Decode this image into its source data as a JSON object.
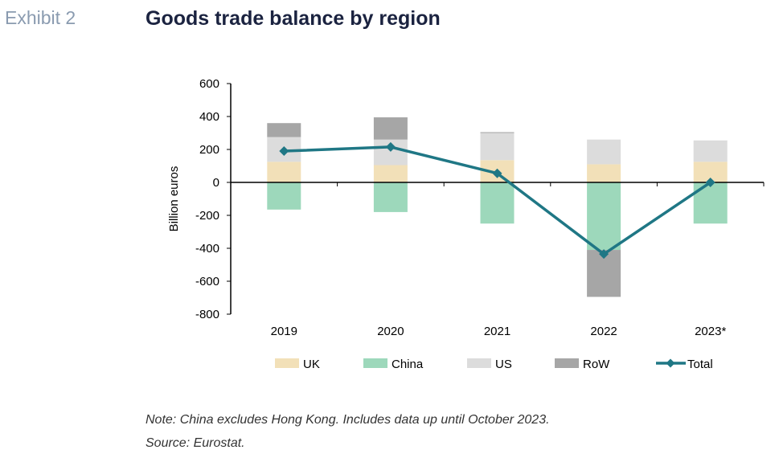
{
  "header": {
    "exhibit_label": "Exhibit 2",
    "title": "Goods trade balance by region"
  },
  "footer": {
    "note": "Note: China excludes Hong Kong. Includes data up until October 2023.",
    "source": "Source: Eurostat."
  },
  "chart_data": {
    "type": "bar",
    "subtype": "stacked-bar-with-line",
    "categories": [
      "2019",
      "2020",
      "2021",
      "2022",
      "2023*"
    ],
    "ylabel": "Billion euros",
    "ylim": [
      -800,
      600
    ],
    "yticks": [
      600,
      400,
      200,
      0,
      -200,
      -400,
      -600,
      -800
    ],
    "grid": false,
    "legend_position": "bottom",
    "series": [
      {
        "name": "UK",
        "type": "bar",
        "color": "#f2e0b8",
        "values": [
          125,
          105,
          135,
          110,
          125
        ]
      },
      {
        "name": "China",
        "type": "bar",
        "color": "#9dd8bb",
        "values": [
          -165,
          -180,
          -250,
          -410,
          -250
        ]
      },
      {
        "name": "US",
        "type": "bar",
        "color": "#dcdcdc",
        "values": [
          150,
          155,
          165,
          150,
          130
        ]
      },
      {
        "name": "RoW",
        "type": "bar",
        "color": "#a6a6a6",
        "values": [
          85,
          135,
          5,
          -285,
          0
        ]
      },
      {
        "name": "Total",
        "type": "line",
        "color": "#1f7785",
        "marker": "diamond",
        "values": [
          190,
          215,
          55,
          -435,
          0
        ]
      }
    ]
  }
}
